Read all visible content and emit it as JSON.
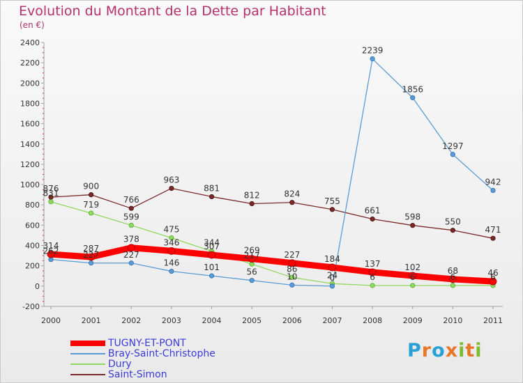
{
  "header": {
    "title": "Evolution du Montant de la Dette par Habitant",
    "subtitle": "(en €)"
  },
  "brand": {
    "name": "Proxiti",
    "letters": [
      {
        "char": "P",
        "color": "#2aa0d8"
      },
      {
        "char": "r",
        "color": "#e8772a"
      },
      {
        "char": "o",
        "color": "#2aa0d8"
      },
      {
        "char": "x",
        "color": "#e8772a"
      },
      {
        "char": "i",
        "color": "#7cba2f"
      },
      {
        "char": "t",
        "color": "#e8772a"
      },
      {
        "char": "i",
        "color": "#7cba2f"
      }
    ]
  },
  "chart_data": {
    "type": "line",
    "title": "Evolution du Montant de la Dette par Habitant",
    "subtitle": "(en €)",
    "x": [
      "2000",
      "2001",
      "2002",
      "2003",
      "2004",
      "2005",
      "2006",
      "2007",
      "2008",
      "2009",
      "2010",
      "2011"
    ],
    "ylim": [
      -200,
      2400
    ],
    "y_ticks": [
      -200,
      0,
      200,
      400,
      600,
      800,
      1000,
      1200,
      1400,
      1600,
      1800,
      2000,
      2200,
      2400
    ],
    "grid": false,
    "legend_position": "bottom-left",
    "series": [
      {
        "name": "TUGNY-ET-PONT",
        "color": "#ff0000",
        "values": [
          314,
          287,
          378,
          346,
          307,
          269,
          227,
          184,
          137,
          102,
          68,
          46
        ],
        "labels": [
          "314",
          "287",
          "378",
          "346",
          "307",
          "269",
          "227",
          "184",
          "137",
          "102",
          "68",
          "46"
        ]
      },
      {
        "name": "Bray-Saint-Christophe",
        "color": "#5b9bd5",
        "values": [
          262,
          227,
          227,
          146,
          101,
          56,
          10,
          0,
          2239,
          1856,
          1297,
          942
        ],
        "labels": [
          "262",
          "227",
          "227",
          "146",
          "101",
          "56",
          "10",
          "0",
          "2239",
          "1856",
          "1297",
          "942"
        ]
      },
      {
        "name": "Dury",
        "color": "#90d860",
        "values": [
          831,
          719,
          599,
          475,
          344,
          217,
          86,
          24,
          6,
          6,
          6,
          6
        ],
        "labels": [
          "831",
          "719",
          "599",
          "475",
          "344",
          "217",
          "86",
          "24",
          "6",
          "6",
          "6",
          "6"
        ]
      },
      {
        "name": "Saint-Simon",
        "color": "#7a2828",
        "values": [
          876,
          900,
          766,
          963,
          881,
          812,
          824,
          755,
          661,
          598,
          550,
          471
        ],
        "labels": [
          "876",
          "900",
          "766",
          "963",
          "881",
          "812",
          "824",
          "755",
          "661",
          "598",
          "550",
          "471"
        ]
      }
    ]
  }
}
